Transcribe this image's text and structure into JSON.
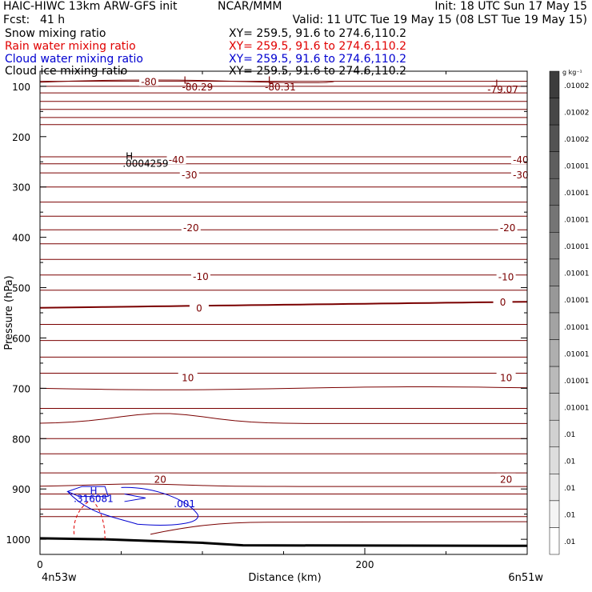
{
  "header": {
    "model": "HAIC-HIWC 13km ARW-GFS init",
    "org": "NCAR/MMM",
    "init": "Init: 18 UTC Sun 17 May 15",
    "fcst_label": "Fcst:",
    "fcst_value": "41 h",
    "valid": "Valid: 11 UTC Tue 19 May 15 (08 LST Tue 19 May 15)",
    "fields": [
      {
        "name": "Snow mixing ratio",
        "xy": "XY= 259.5, 91.6 to 274.6,110.2",
        "color": "#000000"
      },
      {
        "name": "Rain water mixing ratio",
        "xy": "XY= 259.5, 91.6 to 274.6,110.2",
        "color": "#e00000"
      },
      {
        "name": "Cloud water mixing ratio",
        "xy": "XY= 259.5, 91.6 to 274.6,110.2",
        "color": "#0000d0"
      },
      {
        "name": "Cloud ice mixing ratio",
        "xy": "XY= 259.5, 91.6 to 274.6,110.2",
        "color": "#000000"
      }
    ]
  },
  "colorbar": {
    "unit": "g kg⁻¹",
    "labels": [
      ".01002",
      ".01002",
      ".01002",
      ".01001",
      ".01001",
      ".01001",
      ".01001",
      ".01001",
      ".01001",
      ".01001",
      ".01001",
      ".01001",
      ".01001",
      ".01",
      ".01",
      ".01",
      ".01",
      ".01"
    ]
  },
  "chart_data": {
    "type": "contour cross-section",
    "ylabel": "Pressure (hPa)",
    "xlabel": "Distance (km)",
    "x_ticks": [
      0,
      200
    ],
    "y_ticks": [
      100,
      200,
      300,
      400,
      500,
      600,
      700,
      800,
      900,
      1000
    ],
    "ylim": [
      1030,
      70
    ],
    "xlim": [
      0,
      300
    ],
    "left_label": "4n53w",
    "right_label": "6n51w",
    "temperature_contours": {
      "color": "#7a0000",
      "labels": [
        {
          "text": "-80",
          "x": 67,
          "p": 90
        },
        {
          "text": "-40",
          "x": 84,
          "p": 245
        },
        {
          "text": "-40",
          "x": 296,
          "p": 245
        },
        {
          "text": "-30",
          "x": 92,
          "p": 275
        },
        {
          "text": "-30",
          "x": 296,
          "p": 275
        },
        {
          "text": "-20",
          "x": 93,
          "p": 380
        },
        {
          "text": "-20",
          "x": 288,
          "p": 380
        },
        {
          "text": "-10",
          "x": 99,
          "p": 477
        },
        {
          "text": "-10",
          "x": 287,
          "p": 478
        },
        {
          "text": "0",
          "x": 98,
          "p": 540
        },
        {
          "text": "0",
          "x": 285,
          "p": 528
        },
        {
          "text": "10",
          "x": 91,
          "p": 678
        },
        {
          "text": "10",
          "x": 287,
          "p": 678
        },
        {
          "text": "20",
          "x": 74,
          "p": 880
        },
        {
          "text": "20",
          "x": 287,
          "p": 880
        }
      ],
      "extrema": [
        {
          "text": "L",
          "value": "-80.29",
          "x": 90,
          "p": 87,
          "vx": 97,
          "vp": 100
        },
        {
          "text": "L",
          "value": "-80.31",
          "x": 142,
          "p": 87,
          "vx": 148,
          "vp": 100
        },
        {
          "text": "L",
          "value": "-79.07",
          "x": 282,
          "p": 93,
          "vx": 285,
          "vp": 105
        }
      ]
    },
    "snow_contours": {
      "extrema": [
        {
          "text": "H",
          "x": 55,
          "p": 238
        }
      ],
      "labels": [
        {
          "text": ".0004259",
          "x": 65,
          "p": 252
        }
      ]
    },
    "cloud_water_contours": {
      "color": "#0000d0",
      "extrema": [
        {
          "text": "H",
          "x": 33,
          "p": 903
        }
      ],
      "labels": [
        {
          "text": ".316081",
          "x": 33,
          "p": 918
        },
        {
          "text": ".001",
          "x": 89,
          "p": 928
        }
      ]
    }
  }
}
